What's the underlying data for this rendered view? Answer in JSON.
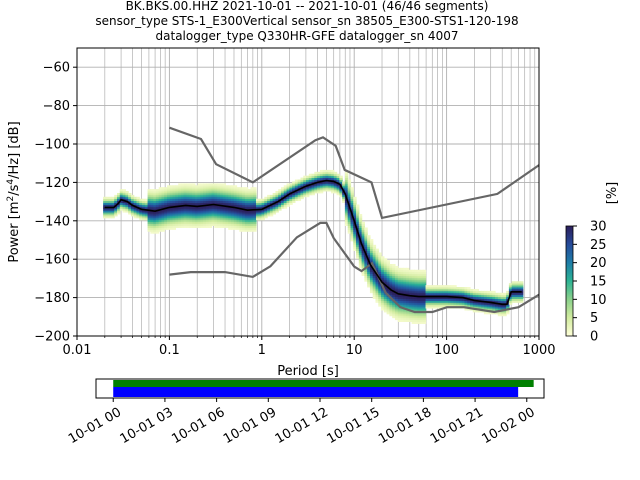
{
  "chart_data": {
    "type": "heatmap",
    "title_lines": [
      "BK.BKS.00.HHZ   2021-10-01 -- 2021-10-01  (46/46 segments)",
      "sensor_type STS-1_E300Vertical sensor_sn 38505_E300-STS1-120-198",
      "datalogger_type Q330HR-GFE datalogger_sn 4007"
    ],
    "xlabel": "Period [s]",
    "ylabel_parts": [
      "Power [m",
      "2",
      "/s",
      "4",
      "/Hz] [dB]"
    ],
    "xscale": "log",
    "xlim": [
      0.01,
      1000
    ],
    "ylim": [
      -200,
      -50
    ],
    "x_ticks": [
      {
        "v": 0.01,
        "label": "0.01"
      },
      {
        "v": 0.1,
        "label": "0.1"
      },
      {
        "v": 1,
        "label": "1"
      },
      {
        "v": 10,
        "label": "10"
      },
      {
        "v": 100,
        "label": "100"
      },
      {
        "v": 1000,
        "label": "1000"
      }
    ],
    "y_ticks": [
      {
        "v": -60,
        "label": "−60"
      },
      {
        "v": -80,
        "label": "−80"
      },
      {
        "v": -100,
        "label": "−100"
      },
      {
        "v": -120,
        "label": "−120"
      },
      {
        "v": -140,
        "label": "−140"
      },
      {
        "v": -160,
        "label": "−160"
      },
      {
        "v": -180,
        "label": "−180"
      },
      {
        "v": -200,
        "label": "−200"
      }
    ],
    "grid": true,
    "nhnm": {
      "periods": [
        0.1,
        0.22,
        0.32,
        0.8,
        3.8,
        4.6,
        6.3,
        7.9,
        15.4,
        20,
        354.8,
        1000
      ],
      "values": [
        -91.5,
        -97.4,
        -110.5,
        -120,
        -98,
        -96.5,
        -101,
        -113.5,
        -120,
        -138.5,
        -126,
        -111
      ]
    },
    "nlnm": {
      "periods": [
        0.1,
        0.17,
        0.4,
        0.8,
        1.24,
        2.4,
        4.3,
        5,
        6,
        10,
        12,
        15.6,
        21.9,
        31.6,
        45,
        70,
        101,
        154,
        328,
        600,
        1000
      ],
      "values": [
        -168,
        -166.7,
        -166.7,
        -169.2,
        -163.7,
        -148.6,
        -141.1,
        -141.1,
        -149,
        -163.8,
        -166.2,
        -162.1,
        -177.5,
        -185,
        -187.5,
        -187.5,
        -185,
        -185,
        -187.5,
        -185,
        -178.5
      ]
    },
    "mean": {
      "periods": [
        0.02,
        0.025,
        0.028,
        0.03,
        0.035,
        0.04,
        0.05,
        0.07,
        0.1,
        0.15,
        0.2,
        0.3,
        0.5,
        0.7,
        1,
        1.5,
        2,
        3,
        4,
        5,
        6,
        7,
        8,
        10,
        12,
        15,
        20,
        25,
        30,
        40,
        50,
        70,
        100,
        150,
        200,
        300,
        400,
        450,
        500,
        600,
        650
      ],
      "values": [
        -133,
        -133,
        -131,
        -129,
        -130,
        -132,
        -134,
        -135,
        -133,
        -132,
        -132.5,
        -131.5,
        -133,
        -134.5,
        -134,
        -130,
        -126,
        -122,
        -120,
        -119,
        -119.5,
        -121,
        -126,
        -140,
        -152,
        -163,
        -172,
        -176,
        -178,
        -179,
        -179.5,
        -179.5,
        -179.5,
        -180,
        -181.5,
        -182.5,
        -183.5,
        -183.5,
        -177,
        -177,
        -177
      ]
    },
    "colorbar": {
      "label": "[%]",
      "min": 0,
      "max": 30,
      "ticks": [
        {
          "v": 0,
          "label": "0"
        },
        {
          "v": 5,
          "label": "5"
        },
        {
          "v": 10,
          "label": "10"
        },
        {
          "v": 15,
          "label": "15"
        },
        {
          "v": 20,
          "label": "20"
        },
        {
          "v": 25,
          "label": "25"
        },
        {
          "v": 30,
          "label": "30"
        }
      ],
      "colors": [
        "#ffffd9",
        "#d2eca0",
        "#8ad08b",
        "#2db394",
        "#1e7ea8",
        "#264b9a",
        "#2c1e5a"
      ]
    },
    "coverage": {
      "ticks": [
        "10-01 00",
        "10-01 03",
        "10-01 06",
        "10-01 09",
        "10-01 12",
        "10-01 15",
        "10-01 18",
        "10-01 21",
        "10-02 00"
      ],
      "axis_hours": [
        -1,
        25
      ],
      "data_span_hours": [
        0,
        24.4
      ],
      "processed_span_hours": [
        0,
        23.5
      ],
      "data_color": "#008000",
      "processed_color": "#0000ff"
    }
  }
}
